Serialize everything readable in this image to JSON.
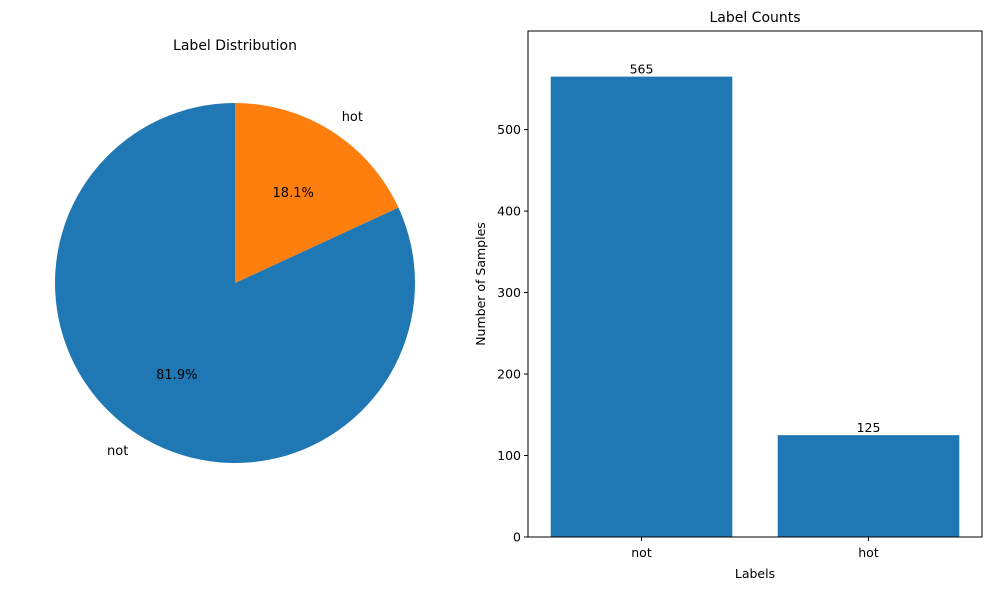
{
  "colors": {
    "blue": "#1f77b4",
    "orange": "#ff7f0e"
  },
  "chart_data": [
    {
      "type": "pie",
      "title": "Label Distribution",
      "slices": [
        {
          "label": "hot",
          "value": 125,
          "pct_label": "18.1%",
          "color": "#ff7f0e"
        },
        {
          "label": "not",
          "value": 565,
          "pct_label": "81.9%",
          "color": "#1f77b4"
        }
      ],
      "start_angle_deg": 90,
      "direction": "counterclockwise-from-top-not-first"
    },
    {
      "type": "bar",
      "title": "Label Counts",
      "categories": [
        "not",
        "hot"
      ],
      "values": [
        565,
        125
      ],
      "value_labels": [
        "565",
        "125"
      ],
      "xlabel": "Labels",
      "ylabel": "Number of Samples",
      "ylim": [
        0,
        621
      ],
      "yticks": [
        "0",
        "100",
        "200",
        "300",
        "400",
        "500"
      ],
      "color": "#1f77b4",
      "grid": false
    }
  ]
}
